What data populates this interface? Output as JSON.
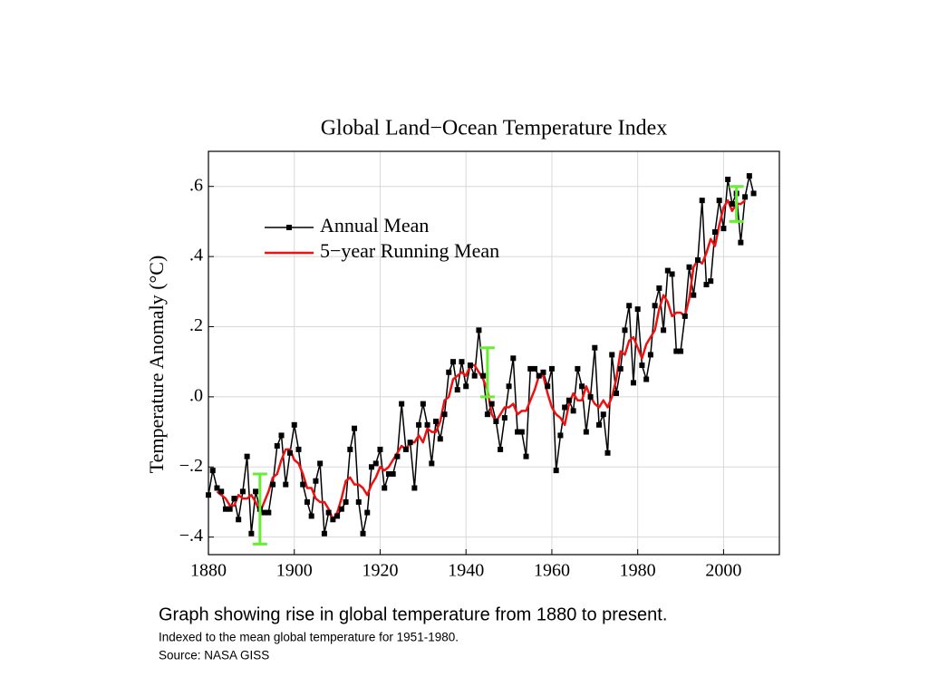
{
  "chart_data": {
    "type": "line",
    "title": "Global Land−Ocean Temperature Index",
    "ylabel": "Temperature Anomaly (°C)",
    "x": [
      1880,
      1881,
      1882,
      1883,
      1884,
      1885,
      1886,
      1887,
      1888,
      1889,
      1890,
      1891,
      1892,
      1893,
      1894,
      1895,
      1896,
      1897,
      1898,
      1899,
      1900,
      1901,
      1902,
      1903,
      1904,
      1905,
      1906,
      1907,
      1908,
      1909,
      1910,
      1911,
      1912,
      1913,
      1914,
      1915,
      1916,
      1917,
      1918,
      1919,
      1920,
      1921,
      1922,
      1923,
      1924,
      1925,
      1926,
      1927,
      1928,
      1929,
      1930,
      1931,
      1932,
      1933,
      1934,
      1935,
      1936,
      1937,
      1938,
      1939,
      1940,
      1941,
      1942,
      1943,
      1944,
      1945,
      1946,
      1947,
      1948,
      1949,
      1950,
      1951,
      1952,
      1953,
      1954,
      1955,
      1956,
      1957,
      1958,
      1959,
      1960,
      1961,
      1962,
      1963,
      1964,
      1965,
      1966,
      1967,
      1968,
      1969,
      1970,
      1971,
      1972,
      1973,
      1974,
      1975,
      1976,
      1977,
      1978,
      1979,
      1980,
      1981,
      1982,
      1983,
      1984,
      1985,
      1986,
      1987,
      1988,
      1989,
      1990,
      1991,
      1992,
      1993,
      1994,
      1995,
      1996,
      1997,
      1998,
      1999,
      2000,
      2001,
      2002,
      2003,
      2004,
      2005,
      2006,
      2007
    ],
    "series": [
      {
        "name": "Annual Mean",
        "color": "#000000",
        "marker": "square",
        "values": [
          -0.28,
          -0.21,
          -0.26,
          -0.27,
          -0.32,
          -0.32,
          -0.29,
          -0.35,
          -0.27,
          -0.17,
          -0.39,
          -0.27,
          -0.32,
          -0.33,
          -0.33,
          -0.25,
          -0.14,
          -0.11,
          -0.25,
          -0.16,
          -0.08,
          -0.15,
          -0.25,
          -0.3,
          -0.34,
          -0.24,
          -0.19,
          -0.39,
          -0.33,
          -0.35,
          -0.34,
          -0.32,
          -0.3,
          -0.15,
          -0.09,
          -0.3,
          -0.39,
          -0.33,
          -0.2,
          -0.19,
          -0.15,
          -0.26,
          -0.22,
          -0.22,
          -0.17,
          -0.02,
          -0.15,
          -0.13,
          -0.26,
          -0.08,
          -0.02,
          -0.08,
          -0.19,
          -0.07,
          -0.12,
          -0.05,
          0.07,
          0.1,
          0.02,
          0.1,
          0.03,
          0.09,
          0.06,
          0.19,
          0.06,
          -0.05,
          -0.02,
          -0.07,
          -0.15,
          -0.06,
          0.03,
          0.11,
          -0.1,
          -0.1,
          -0.17,
          0.08,
          0.08,
          0.06,
          0.07,
          0.03,
          0.08,
          -0.21,
          -0.11,
          -0.03,
          -0.01,
          -0.04,
          0.08,
          0.03,
          -0.1,
          0.0,
          0.14,
          -0.08,
          -0.05,
          -0.16,
          0.12,
          0.01,
          0.08,
          0.19,
          0.26,
          0.04,
          0.25,
          0.09,
          0.05,
          0.12,
          0.26,
          0.31,
          0.19,
          0.36,
          0.35,
          0.13,
          0.13,
          0.23,
          0.37,
          0.29,
          0.39,
          0.56,
          0.32,
          0.33,
          0.47,
          0.56,
          0.48,
          0.62,
          0.55,
          0.58,
          0.44,
          0.57,
          0.63,
          0.58
        ]
      },
      {
        "name": "5−year Running Mean",
        "color": "#ee1111",
        "values": [
          null,
          null,
          -0.27,
          -0.28,
          -0.29,
          -0.31,
          -0.31,
          -0.28,
          -0.29,
          -0.29,
          -0.28,
          -0.3,
          -0.33,
          -0.3,
          -0.27,
          -0.23,
          -0.22,
          -0.18,
          -0.15,
          -0.15,
          -0.18,
          -0.19,
          -0.22,
          -0.26,
          -0.26,
          -0.29,
          -0.3,
          -0.3,
          -0.32,
          -0.35,
          -0.33,
          -0.29,
          -0.24,
          -0.23,
          -0.25,
          -0.25,
          -0.26,
          -0.28,
          -0.25,
          -0.23,
          -0.2,
          -0.21,
          -0.2,
          -0.18,
          -0.16,
          -0.14,
          -0.15,
          -0.13,
          -0.13,
          -0.11,
          -0.13,
          -0.09,
          -0.1,
          -0.1,
          -0.07,
          -0.01,
          0.0,
          0.05,
          0.06,
          0.07,
          0.06,
          0.09,
          0.09,
          0.07,
          0.05,
          0.02,
          -0.05,
          -0.07,
          -0.05,
          -0.03,
          -0.03,
          -0.02,
          -0.05,
          -0.04,
          -0.04,
          -0.01,
          0.02,
          0.06,
          0.06,
          0.01,
          -0.03,
          -0.05,
          -0.06,
          -0.08,
          -0.02,
          0.01,
          -0.01,
          -0.01,
          0.03,
          0.0,
          -0.02,
          -0.03,
          -0.01,
          -0.03,
          0.0,
          0.05,
          0.13,
          0.12,
          0.16,
          0.17,
          0.14,
          0.11,
          0.15,
          0.17,
          0.19,
          0.25,
          0.29,
          0.27,
          0.23,
          0.24,
          0.24,
          0.23,
          0.28,
          0.37,
          0.39,
          0.38,
          0.41,
          0.45,
          0.43,
          0.49,
          0.54,
          0.56,
          0.53,
          0.55,
          0.55,
          0.56,
          null,
          null
        ]
      }
    ],
    "error_bars": [
      {
        "x": 1892,
        "value": -0.32,
        "error": 0.1
      },
      {
        "x": 1945,
        "value": 0.07,
        "error": 0.07
      },
      {
        "x": 2003,
        "value": 0.55,
        "error": 0.05
      }
    ],
    "error_bar_color": "#66ee33",
    "xlim": [
      1880,
      2013
    ],
    "xticks": [
      1880,
      1900,
      1920,
      1940,
      1960,
      1980,
      2000
    ],
    "ylim": [
      -0.45,
      0.7
    ],
    "yticks": [
      {
        "value": -0.4,
        "label": "−.4"
      },
      {
        "value": -0.2,
        "label": "−.2"
      },
      {
        "value": 0,
        "label": ".0"
      },
      {
        "value": 0.2,
        "label": ".2"
      },
      {
        "value": 0.4,
        "label": ".4"
      },
      {
        "value": 0.6,
        "label": ".6"
      }
    ],
    "grid": true,
    "legend": "upper-left"
  },
  "caption": {
    "headline": "Graph showing rise in global temperature from 1880 to present.",
    "note": "Indexed to the mean global temperature for 1951-1980.",
    "source": "Source: NASA GISS"
  }
}
